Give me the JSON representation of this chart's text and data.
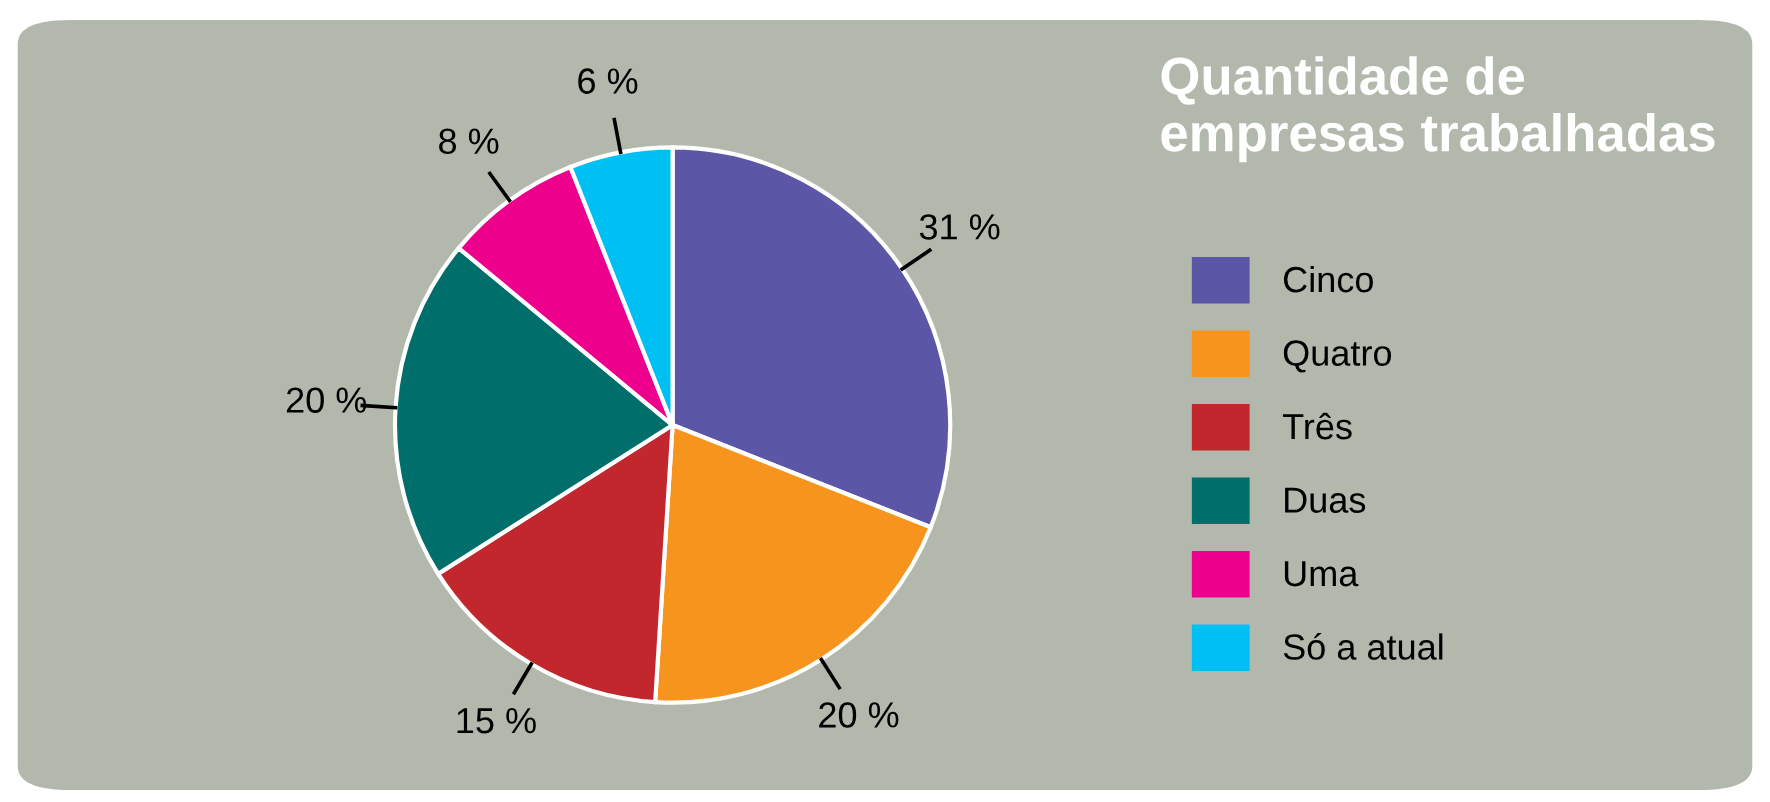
{
  "chart_data": {
    "type": "pie",
    "title": "Quantidade de empresas trabalhadas",
    "categories": [
      "Cinco",
      "Quatro",
      "Três",
      "Duas",
      "Uma",
      "Só a atual"
    ],
    "values": [
      31,
      20,
      15,
      20,
      8,
      6
    ],
    "colors": [
      "#5b57a6",
      "#f7941d",
      "#c1272d",
      "#006f6b",
      "#ec008c",
      "#00bff3"
    ],
    "value_labels": [
      "31 %",
      "20 %",
      "15 %",
      "20 %",
      "8 %",
      "6 %"
    ],
    "legend": "right"
  }
}
